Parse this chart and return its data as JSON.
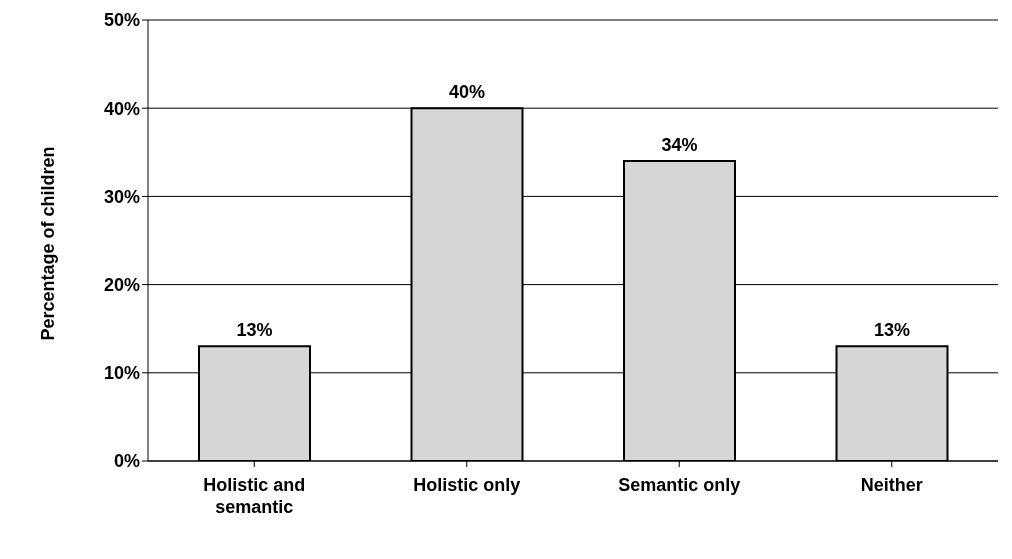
{
  "chart_data": {
    "type": "bar",
    "ylabel": "Percentage of children",
    "categories": [
      "Holistic and semantic",
      "Holistic only",
      "Semantic only",
      "Neither"
    ],
    "values": [
      13,
      40,
      34,
      13
    ],
    "value_labels": [
      "13%",
      "40%",
      "34%",
      "13%"
    ],
    "color": "#d6d6d6",
    "ylim": [
      0,
      50
    ],
    "yticks": [
      {
        "value": 0,
        "label": "0%"
      },
      {
        "value": 10,
        "label": "10%"
      },
      {
        "value": 20,
        "label": "20%"
      },
      {
        "value": 30,
        "label": "30%"
      },
      {
        "value": 40,
        "label": "40%"
      },
      {
        "value": 50,
        "label": "50%"
      }
    ],
    "grid": "y",
    "legend": false
  }
}
